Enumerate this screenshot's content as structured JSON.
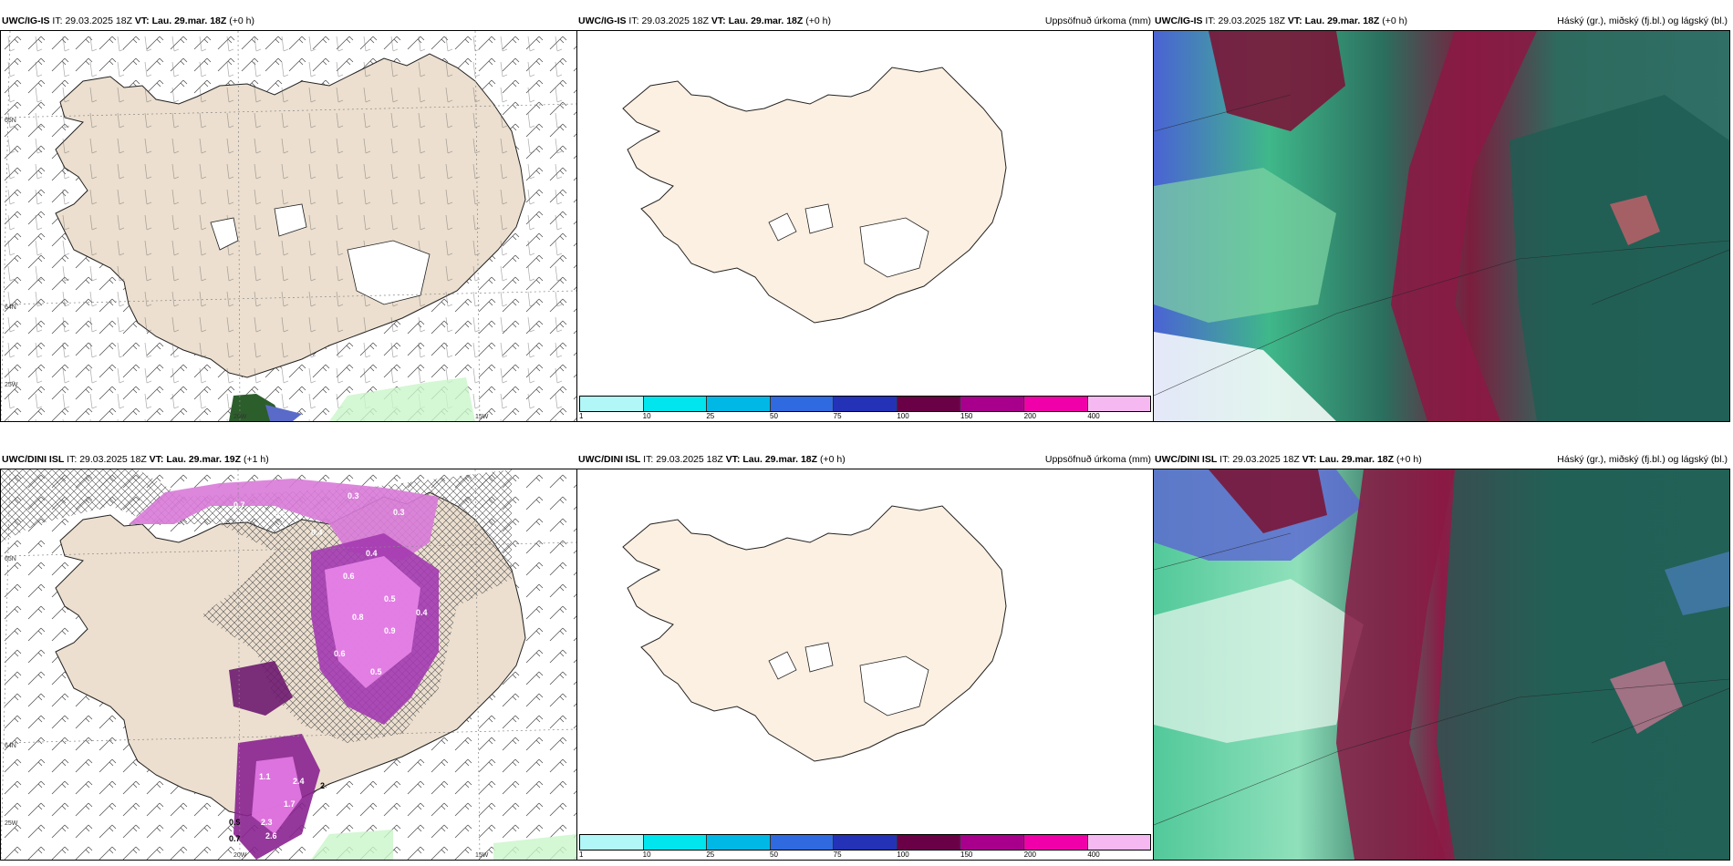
{
  "panels": [
    {
      "model": "UWC/IG-IS",
      "it_label": "IT:",
      "it": "29.03.2025 18Z",
      "vt_label": "VT:",
      "vt": "Lau. 29.mar. 18Z",
      "lead": "(+0 h)",
      "right": ""
    },
    {
      "model": "UWC/IG-IS",
      "it_label": "IT:",
      "it": "29.03.2025 18Z",
      "vt_label": "VT:",
      "vt": "Lau. 29.mar. 18Z",
      "lead": "(+0 h)",
      "right": "Uppsöfnuð úrkoma (mm)"
    },
    {
      "model": "UWC/IG-IS",
      "it_label": "IT:",
      "it": "29.03.2025 18Z",
      "vt_label": "VT:",
      "vt": "Lau. 29.mar. 18Z",
      "lead": "(+0 h)",
      "right": "Háský (gr.), miðský (fj.bl.) og lágský (bl.)"
    },
    {
      "model": "UWC/DINI ISL",
      "it_label": "IT:",
      "it": "29.03.2025 18Z",
      "vt_label": "VT:",
      "vt": "Lau. 29.mar. 19Z",
      "lead": "(+1 h)",
      "right": ""
    },
    {
      "model": "UWC/DINI ISL",
      "it_label": "IT:",
      "it": "29.03.2025 18Z",
      "vt_label": "VT:",
      "vt": "Lau. 29.mar. 18Z",
      "lead": "(+0 h)",
      "right": "Uppsöfnuð úrkoma (mm)"
    },
    {
      "model": "UWC/DINI ISL",
      "it_label": "IT:",
      "it": "29.03.2025 18Z",
      "vt_label": "VT:",
      "vt": "Lau. 29.mar. 18Z",
      "lead": "(+0 h)",
      "right": "Háský (gr.), miðský (fj.bl.) og lágský (bl.)"
    }
  ],
  "axis_labels": {
    "lat65": "65N",
    "lat64": "64N",
    "lon25": "25W",
    "lon20": "20W",
    "lon15": "15W"
  },
  "colorbar": {
    "ticks": [
      "1",
      "10",
      "25",
      "50",
      "75",
      "100",
      "150",
      "200",
      "400"
    ],
    "colors": [
      "#b2f7f7",
      "#00e5ee",
      "#00b8e6",
      "#2f6ae0",
      "#2432b8",
      "#6a0046",
      "#a8008c",
      "#f000a8",
      "#f6b8f0"
    ]
  },
  "precip_labels_top": [
    "0.3",
    "0.7",
    "0.5",
    "0.4",
    "0.4",
    "0.3",
    "0.6",
    "0.5",
    "0.8",
    "0.9",
    "0.6",
    "0.5",
    "0.4"
  ],
  "precip_labels_bottom": [
    "1.1",
    "2.4",
    "2",
    "2.6",
    "0.9",
    "0.7",
    "2.3",
    "1.7"
  ]
}
